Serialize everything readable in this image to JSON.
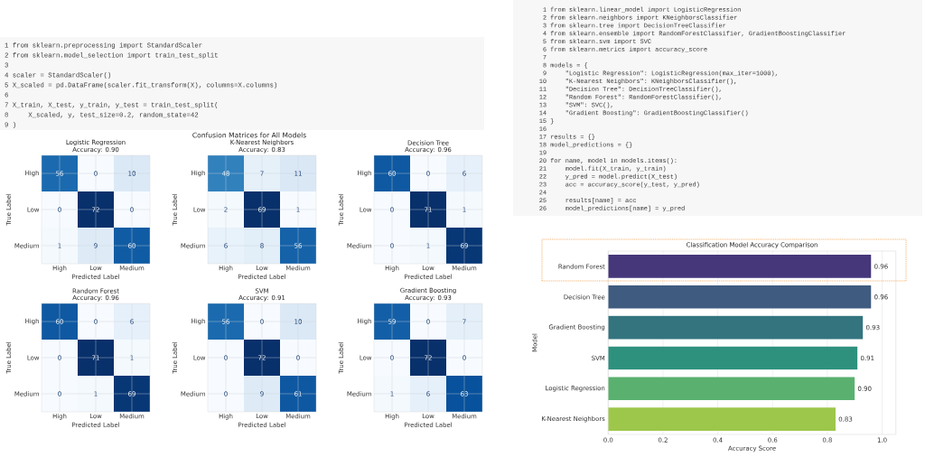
{
  "chart_data": [
    {
      "type": "other",
      "annotations": [
        "1 from sklearn.preprocessing import StandardScaler",
        "2 from sklearn.model_selection import train_test_split",
        "3",
        "4 scaler = StandardScaler()",
        "5 X_scaled = pd.DataFrame(scaler.fit_transform(X), columns=X.columns)",
        "6",
        "7 X_train, X_test, y_train, y_test = train_test_split(",
        "8     X_scaled, y, test_size=0.2, random_state=42",
        "9 )"
      ]
    },
    {
      "type": "other",
      "annotations": [
        "1 from sklearn.linear_model import LogisticRegression",
        "2 from sklearn.neighbors import KNeighborsClassifier",
        "3 from sklearn.tree import DecisionTreeClassifier",
        "4 from sklearn.ensemble import RandomForestClassifier, GradientBoostingClassifier",
        "5 from sklearn.svm import SVC",
        "6 from sklearn.metrics import accuracy_score",
        "7",
        "8 models = {",
        "9     \"Logistic Regression\": LogisticRegression(max_iter=1000),",
        "10     \"K-Nearest Neighbors\": KNeighborsClassifier(),",
        "11     \"Decision Tree\": DecisionTreeClassifier(),",
        "12     \"Random Forest\": RandomForestClassifier(),",
        "13     \"SVM\": SVC(),",
        "14     \"Gradient Boosting\": GradientBoostingClassifier()",
        "15 }",
        "16",
        "17 results = {}",
        "18 model_predictions = {}",
        "19",
        "20 for name, model in models.items():",
        "21     model.fit(X_train, y_train)",
        "22     y_pred = model.predict(X_test)",
        "23     acc = accuracy_score(y_test, y_pred)",
        "24",
        "25     results[name] = acc",
        "26     model_predictions[name] = y_pred"
      ]
    },
    {
      "type": "other",
      "title": "Confusion Matrices for All Models"
    },
    {
      "type": "heatmap",
      "title": "Logistic Regression",
      "subtitle": "Accuracy: 0.90",
      "xlabel": "Predicted Label",
      "ylabel": "True Label",
      "categories": [
        "High",
        "Low",
        "Medium"
      ],
      "y_categories": [
        "High",
        "Low",
        "Medium"
      ],
      "cells": [
        [
          56,
          0,
          10
        ],
        [
          0,
          72,
          0
        ],
        [
          1,
          9,
          60
        ]
      ],
      "data_labels": true,
      "grid": true
    },
    {
      "type": "heatmap",
      "title": "K-Nearest Neighbors",
      "subtitle": "Accuracy: 0.83",
      "xlabel": "Predicted Label",
      "ylabel": "True Label",
      "categories": [
        "High",
        "Low",
        "Medium"
      ],
      "y_categories": [
        "High",
        "Low",
        "Medium"
      ],
      "cells": [
        [
          48,
          7,
          11
        ],
        [
          2,
          69,
          1
        ],
        [
          6,
          8,
          56
        ]
      ],
      "data_labels": true,
      "grid": true
    },
    {
      "type": "heatmap",
      "title": "Decision Tree",
      "subtitle": "Accuracy: 0.96",
      "xlabel": "Predicted Label",
      "ylabel": "True Label",
      "categories": [
        "High",
        "Low",
        "Medium"
      ],
      "y_categories": [
        "High",
        "Low",
        "Medium"
      ],
      "cells": [
        [
          60,
          0,
          6
        ],
        [
          0,
          71,
          1
        ],
        [
          0,
          1,
          69
        ]
      ],
      "data_labels": true,
      "grid": true
    },
    {
      "type": "heatmap",
      "title": "Random Forest",
      "subtitle": "Accuracy: 0.96",
      "xlabel": "Predicted Label",
      "ylabel": "True Label",
      "categories": [
        "High",
        "Low",
        "Medium"
      ],
      "y_categories": [
        "High",
        "Low",
        "Medium"
      ],
      "cells": [
        [
          60,
          0,
          6
        ],
        [
          0,
          71,
          1
        ],
        [
          0,
          1,
          69
        ]
      ],
      "data_labels": true,
      "grid": true
    },
    {
      "type": "heatmap",
      "title": "SVM",
      "subtitle": "Accuracy: 0.91",
      "xlabel": "Predicted Label",
      "ylabel": "True Label",
      "categories": [
        "High",
        "Low",
        "Medium"
      ],
      "y_categories": [
        "High",
        "Low",
        "Medium"
      ],
      "cells": [
        [
          56,
          0,
          10
        ],
        [
          0,
          72,
          0
        ],
        [
          0,
          9,
          61
        ]
      ],
      "data_labels": true,
      "grid": true
    },
    {
      "type": "heatmap",
      "title": "Gradient Boosting",
      "subtitle": "Accuracy: 0.93",
      "xlabel": "Predicted Label",
      "ylabel": "True Label",
      "categories": [
        "High",
        "Low",
        "Medium"
      ],
      "y_categories": [
        "High",
        "Low",
        "Medium"
      ],
      "cells": [
        [
          59,
          0,
          7
        ],
        [
          0,
          72,
          0
        ],
        [
          1,
          6,
          63
        ]
      ],
      "data_labels": true,
      "grid": true
    },
    {
      "type": "bar",
      "orientation": "horizontal",
      "title": "Classification Model Accuracy Comparison",
      "xlabel": "Accuracy Score",
      "ylabel": "Model",
      "categories": [
        "Random Forest",
        "Decision Tree",
        "Gradient Boosting",
        "SVM",
        "Logistic Regression",
        "K-Nearest Neighbors"
      ],
      "values": [
        0.96,
        0.96,
        0.93,
        0.91,
        0.9,
        0.83
      ],
      "colors": [
        "#46367a",
        "#3f5b80",
        "#33747f",
        "#2e917e",
        "#5ab16f",
        "#9dc74b"
      ],
      "value_labels": [
        "0.96",
        "0.96",
        "0.93",
        "0.91",
        "0.90",
        "0.83"
      ],
      "xlim": [
        0,
        1.05
      ],
      "xticks": [
        {
          "value": 0,
          "label": "0.0"
        },
        0.2,
        0.4,
        0.6,
        0.8,
        {
          "value": 1,
          "label": "1.0"
        }
      ],
      "grid": "x"
    }
  ]
}
